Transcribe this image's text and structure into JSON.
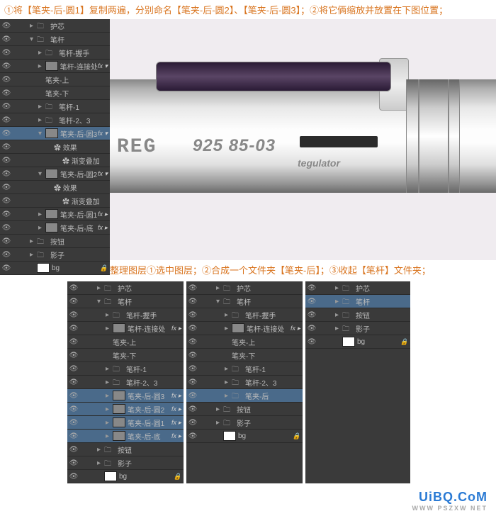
{
  "instruction_top": "①将【笔夹-后-圆1】复制两遍，分别命名【笔夹-后-圆2】、【笔夹-后-圆3】；②将它俩缩放并放置在下图位置；",
  "instruction_mid": "整理图层①选中图层；②合成一个文件夹【笔夹-后】；③收起【笔杆】文件夹；",
  "pen": {
    "reg": "REG",
    "num": "925 85-03",
    "teg": "tegulator"
  },
  "top_layers": [
    {
      "i": 1,
      "arr": "▸",
      "ico": "folder",
      "name": "护芯"
    },
    {
      "i": 1,
      "arr": "▾",
      "ico": "folder",
      "name": "笔杆"
    },
    {
      "i": 2,
      "arr": "▸",
      "ico": "folder",
      "name": "笔杆-握手"
    },
    {
      "i": 2,
      "arr": "▸",
      "ico": "thumb",
      "name": "笔杆-连接处",
      "fx": "fx ▾"
    },
    {
      "i": 2,
      "arr": "",
      "ico": "",
      "name": "笔夹-上"
    },
    {
      "i": 2,
      "arr": "",
      "ico": "",
      "name": "笔夹-下"
    },
    {
      "i": 2,
      "arr": "▸",
      "ico": "folder",
      "name": "笔杆-1"
    },
    {
      "i": 2,
      "arr": "▸",
      "ico": "folder",
      "name": "笔杆-2、3"
    },
    {
      "i": 2,
      "arr": "▾",
      "ico": "thumb",
      "name": "笔夹-后-圆3",
      "fx": "fx ▾",
      "sel": true
    },
    {
      "i": 3,
      "arr": "",
      "ico": "",
      "name": "✿ 效果"
    },
    {
      "i": 4,
      "arr": "",
      "ico": "",
      "name": "✿ 渐变叠加"
    },
    {
      "i": 2,
      "arr": "▾",
      "ico": "thumb",
      "name": "笔夹-后-圆2",
      "fx": "fx ▾"
    },
    {
      "i": 3,
      "arr": "",
      "ico": "",
      "name": "✿ 效果"
    },
    {
      "i": 4,
      "arr": "",
      "ico": "",
      "name": "✿ 渐变叠加"
    },
    {
      "i": 2,
      "arr": "▸",
      "ico": "thumb",
      "name": "笔夹-后-圆1",
      "fx": "fx ▸"
    },
    {
      "i": 2,
      "arr": "▸",
      "ico": "thumb",
      "name": "笔夹-后-底",
      "fx": "fx ▸"
    },
    {
      "i": 1,
      "arr": "▸",
      "ico": "folder",
      "name": "按钮"
    },
    {
      "i": 1,
      "arr": "▸",
      "ico": "folder",
      "name": "影子"
    },
    {
      "i": 1,
      "arr": "",
      "ico": "white",
      "name": "bg",
      "lock": "🔒"
    }
  ],
  "panel1": [
    {
      "i": 1,
      "arr": "▸",
      "ico": "folder",
      "name": "护芯"
    },
    {
      "i": 1,
      "arr": "▾",
      "ico": "folder",
      "name": "笔杆"
    },
    {
      "i": 2,
      "arr": "▸",
      "ico": "folder",
      "name": "笔杆-握手"
    },
    {
      "i": 2,
      "arr": "▸",
      "ico": "thumb",
      "name": "笔杆-连接处",
      "fx": "fx ▸"
    },
    {
      "i": 2,
      "arr": "",
      "ico": "",
      "name": "笔夹-上"
    },
    {
      "i": 2,
      "arr": "",
      "ico": "",
      "name": "笔夹-下"
    },
    {
      "i": 2,
      "arr": "▸",
      "ico": "folder",
      "name": "笔杆-1"
    },
    {
      "i": 2,
      "arr": "▸",
      "ico": "folder",
      "name": "笔杆-2、3"
    },
    {
      "i": 2,
      "arr": "▸",
      "ico": "thumb",
      "name": "笔夹-后-圆3",
      "fx": "fx ▸",
      "sel": true
    },
    {
      "i": 2,
      "arr": "▸",
      "ico": "thumb",
      "name": "笔夹-后-圆2",
      "fx": "fx ▸",
      "sel": true
    },
    {
      "i": 2,
      "arr": "▸",
      "ico": "thumb",
      "name": "笔夹-后-圆1",
      "fx": "fx ▸",
      "sel": true
    },
    {
      "i": 2,
      "arr": "▸",
      "ico": "thumb",
      "name": "笔夹-后-底",
      "fx": "fx ▸",
      "sel": true
    },
    {
      "i": 1,
      "arr": "▸",
      "ico": "folder",
      "name": "按钮"
    },
    {
      "i": 1,
      "arr": "▸",
      "ico": "folder",
      "name": "影子"
    },
    {
      "i": 1,
      "arr": "",
      "ico": "white",
      "name": "bg",
      "lock": "🔒"
    }
  ],
  "panel2": [
    {
      "i": 1,
      "arr": "▸",
      "ico": "folder",
      "name": "护芯"
    },
    {
      "i": 1,
      "arr": "▾",
      "ico": "folder",
      "name": "笔杆"
    },
    {
      "i": 2,
      "arr": "▸",
      "ico": "folder",
      "name": "笔杆-握手"
    },
    {
      "i": 2,
      "arr": "▸",
      "ico": "thumb",
      "name": "笔杆-连接处",
      "fx": "fx ▸"
    },
    {
      "i": 2,
      "arr": "",
      "ico": "",
      "name": "笔夹-上"
    },
    {
      "i": 2,
      "arr": "",
      "ico": "",
      "name": "笔夹-下"
    },
    {
      "i": 2,
      "arr": "▸",
      "ico": "folder",
      "name": "笔杆-1"
    },
    {
      "i": 2,
      "arr": "▸",
      "ico": "folder",
      "name": "笔杆-2、3"
    },
    {
      "i": 2,
      "arr": "▸",
      "ico": "folder",
      "name": "笔夹-后",
      "sel": true
    },
    {
      "i": 1,
      "arr": "▸",
      "ico": "folder",
      "name": "按钮"
    },
    {
      "i": 1,
      "arr": "▸",
      "ico": "folder",
      "name": "影子"
    },
    {
      "i": 1,
      "arr": "",
      "ico": "white",
      "name": "bg",
      "lock": "🔒"
    }
  ],
  "panel3": [
    {
      "i": 1,
      "arr": "▸",
      "ico": "folder",
      "name": "护芯"
    },
    {
      "i": 1,
      "arr": "▸",
      "ico": "folder",
      "name": "笔杆",
      "sel": true
    },
    {
      "i": 1,
      "arr": "▸",
      "ico": "folder",
      "name": "按钮"
    },
    {
      "i": 1,
      "arr": "▸",
      "ico": "folder",
      "name": "影子"
    },
    {
      "i": 1,
      "arr": "",
      "ico": "white",
      "name": "bg",
      "lock": "🔒"
    }
  ],
  "watermark": {
    "main": "UiBQ.CoM",
    "sub": "WWW PSZXW NET"
  }
}
